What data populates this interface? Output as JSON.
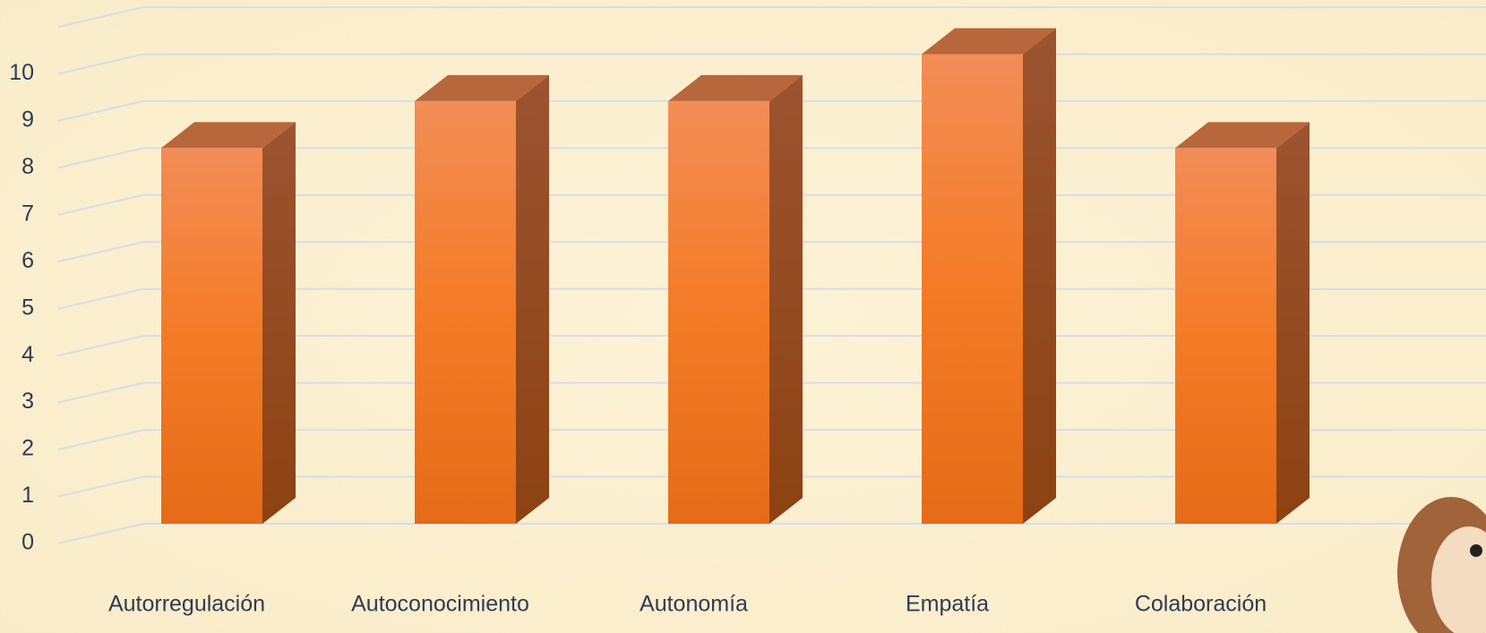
{
  "chart_data": {
    "type": "bar3d",
    "categories": [
      "Autorregulación",
      "Autoconocimiento",
      "Autonomía",
      "Empatía",
      "Colaboración"
    ],
    "values": [
      8,
      9,
      9,
      10,
      8
    ],
    "color": "#f47b26",
    "ylim": [
      0,
      11
    ],
    "yticks": [
      0,
      1,
      2,
      3,
      4,
      5,
      6,
      7,
      8,
      9,
      10
    ],
    "grid": true
  }
}
